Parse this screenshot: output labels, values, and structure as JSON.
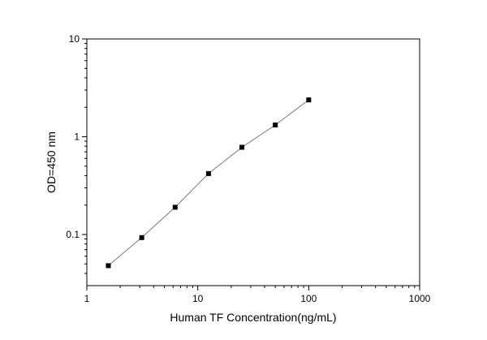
{
  "chart_data": {
    "type": "scatter",
    "xlabel": "Human TF  Concentration(ng/mL)",
    "ylabel": "OD=450 nm",
    "xscale": "log",
    "yscale": "log",
    "xlim": [
      1,
      1000
    ],
    "ylim": [
      0.03,
      10
    ],
    "x_ticks": [
      {
        "value": 1,
        "label": "1"
      },
      {
        "value": 10,
        "label": "10"
      },
      {
        "value": 100,
        "label": "100"
      },
      {
        "value": 1000,
        "label": "1000"
      }
    ],
    "y_ticks": [
      {
        "value": 0.1,
        "label": "0.1"
      },
      {
        "value": 1,
        "label": "1"
      },
      {
        "value": 10,
        "label": "10"
      }
    ],
    "grid": false,
    "legend": "none",
    "connect_points": true,
    "series": [
      {
        "x": [
          1.5625,
          3.125,
          6.25,
          12.5,
          25,
          50,
          100
        ],
        "y": [
          0.048,
          0.093,
          0.19,
          0.42,
          0.78,
          1.32,
          2.38
        ]
      }
    ],
    "colors": {
      "marker": "#000000",
      "line": "#777777",
      "axis": "#000000"
    }
  }
}
